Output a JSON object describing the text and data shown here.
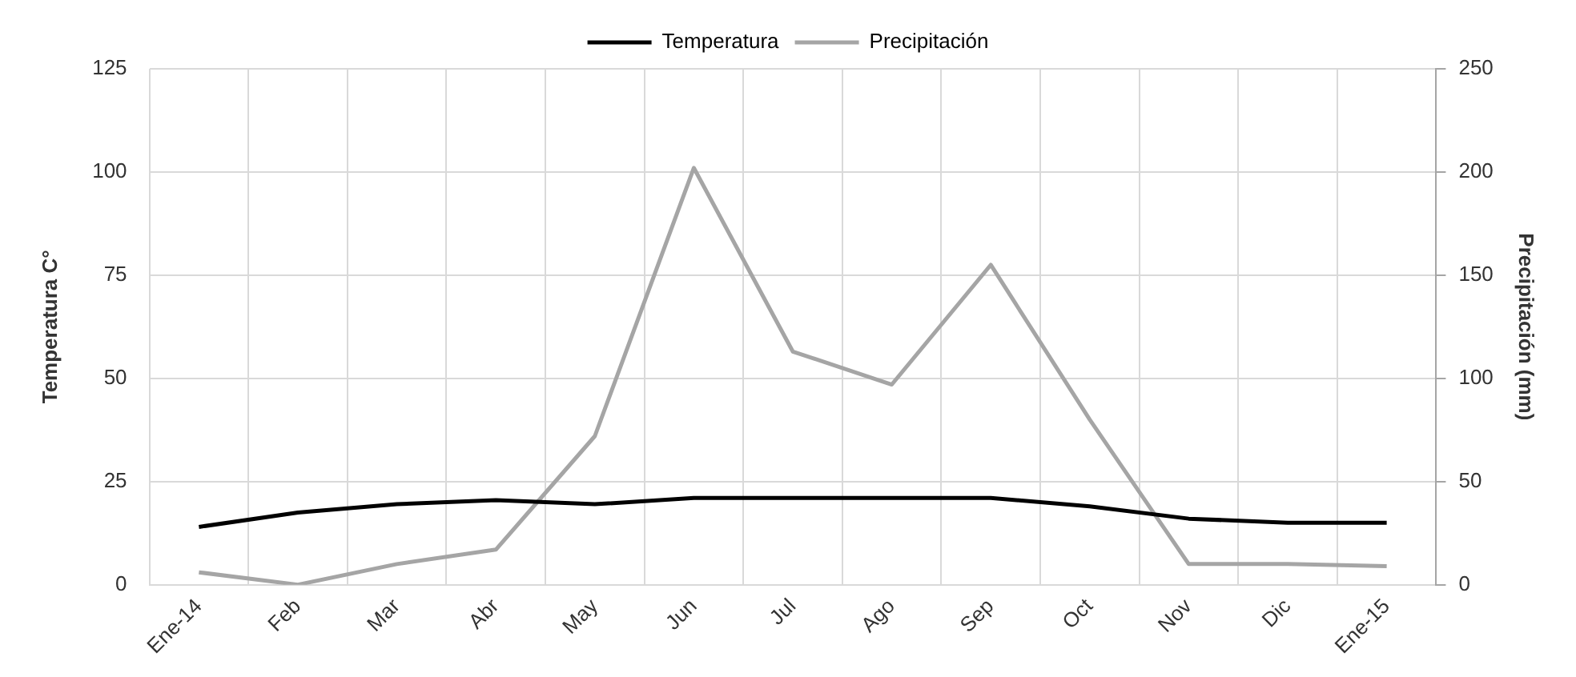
{
  "chart_data": {
    "type": "line",
    "categories": [
      "Ene-14",
      "Feb",
      "Mar",
      "Abr",
      "May",
      "Jun",
      "Jul",
      "Ago",
      "Sep",
      "Oct",
      "Nov",
      "Dic",
      "Ene-15"
    ],
    "ylabel": "Temperatura C°",
    "y2label": "Precipitación (mm)",
    "ylim": [
      0,
      125
    ],
    "yticks": [
      0,
      25,
      50,
      75,
      100,
      125
    ],
    "y2lim": [
      0,
      250
    ],
    "y2ticks": [
      0,
      50,
      100,
      150,
      200,
      250
    ],
    "grid": true,
    "legend": "top",
    "marker": "none",
    "series": [
      {
        "name": "Temperatura",
        "color": "#000000",
        "values": [
          14,
          17.5,
          19.5,
          20.5,
          19.5,
          21,
          21,
          21,
          21,
          19,
          16,
          15,
          15
        ]
      },
      {
        "name": "Precipitación",
        "color": "#a5a5a5",
        "axis": "y2",
        "values": [
          6,
          0,
          10,
          17,
          72,
          202,
          113,
          97,
          155,
          80,
          10,
          10,
          9
        ]
      }
    ]
  }
}
